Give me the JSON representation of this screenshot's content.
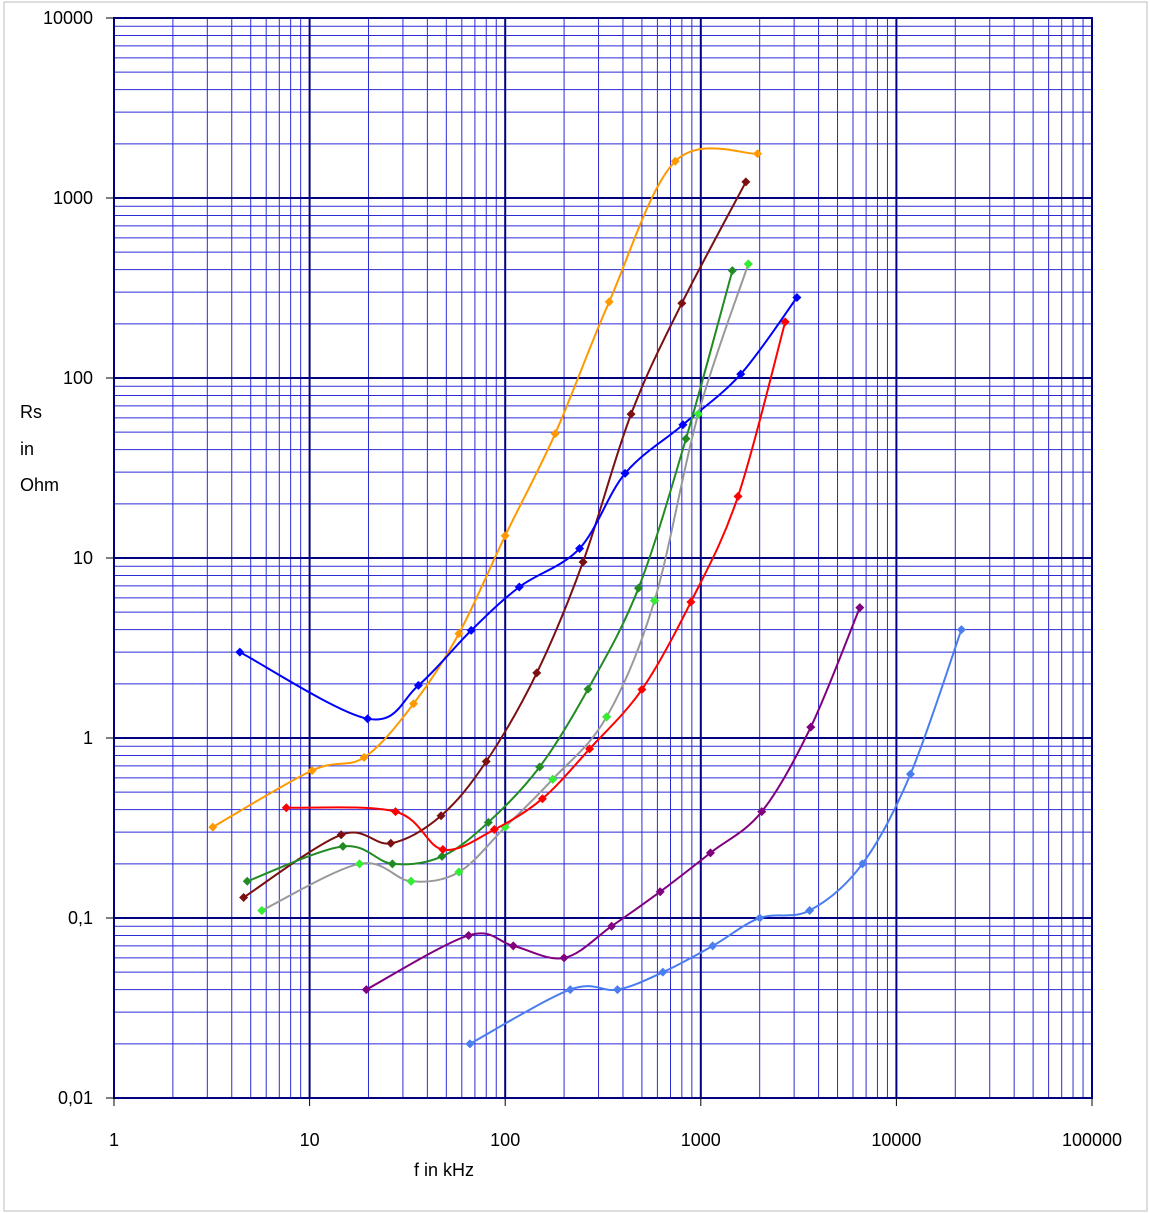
{
  "chart_data": {
    "type": "line",
    "title": "",
    "xlabel": "f in kHz",
    "ylabel_lines": [
      "Rs",
      "in",
      "Ohm"
    ],
    "x_scale": "log",
    "y_scale": "log",
    "xlim": [
      1,
      100000
    ],
    "ylim": [
      0.01,
      10000
    ],
    "x_tick_labels": [
      "1",
      "10",
      "100",
      "1000",
      "10000",
      "100000"
    ],
    "y_tick_labels": [
      "10000",
      "1000",
      "100",
      "10",
      "1",
      "0,1",
      "0,01"
    ],
    "grid": true,
    "legend": "none",
    "series": [
      {
        "color": "#ff9900",
        "x": [
          3.2,
          10.3,
          19,
          34,
          58,
          100,
          180,
          340,
          740,
          1950
        ],
        "y": [
          0.32,
          0.66,
          0.78,
          1.55,
          3.8,
          13.3,
          49,
          265,
          1600,
          1760
        ]
      },
      {
        "color": "#7b1010",
        "x": [
          4.6,
          14.5,
          26,
          47,
          80,
          145,
          250,
          440,
          800,
          1700
        ],
        "y": [
          0.13,
          0.29,
          0.26,
          0.37,
          0.74,
          2.3,
          9.5,
          63,
          260,
          1230
        ]
      },
      {
        "color": "#0000ff",
        "x": [
          4.4,
          19.8,
          36,
          67,
          118,
          240,
          410,
          810,
          1600,
          3100
        ],
        "y": [
          3.0,
          1.28,
          1.96,
          3.96,
          6.9,
          11.3,
          29.5,
          55,
          105,
          280
        ]
      },
      {
        "color": "#228b22",
        "x": [
          4.8,
          14.8,
          26.5,
          47.5,
          82,
          150,
          265,
          480,
          840,
          1450
        ],
        "y": [
          0.16,
          0.25,
          0.2,
          0.22,
          0.34,
          0.69,
          1.87,
          6.8,
          46,
          395
        ]
      },
      {
        "color": "#999999",
        "x": [
          5.7,
          18,
          33,
          58,
          100,
          175,
          330,
          580,
          970,
          1750
        ],
        "y": [
          0.11,
          0.2,
          0.16,
          0.18,
          0.32,
          0.59,
          1.31,
          5.8,
          63,
          430
        ]
      },
      {
        "color": "#33ee33",
        "markers_only": true,
        "x": [
          5.7,
          18,
          33,
          58,
          100,
          175,
          330,
          580,
          970,
          1750
        ],
        "y": [
          0.11,
          0.2,
          0.16,
          0.18,
          0.32,
          0.59,
          1.31,
          5.8,
          63,
          430
        ]
      },
      {
        "color": "#ff0000",
        "x": [
          7.6,
          27.5,
          48,
          88,
          155,
          270,
          500,
          890,
          1550,
          2700
        ],
        "y": [
          0.41,
          0.39,
          0.24,
          0.31,
          0.46,
          0.87,
          1.86,
          5.7,
          22,
          205
        ]
      },
      {
        "color": "#800080",
        "x": [
          19.5,
          65,
          110,
          200,
          350,
          620,
          1120,
          2050,
          3650,
          6500
        ],
        "y": [
          0.04,
          0.08,
          0.07,
          0.06,
          0.09,
          0.14,
          0.23,
          0.39,
          1.15,
          5.3
        ]
      },
      {
        "color": "#4a7df0",
        "x": [
          66,
          215,
          375,
          640,
          1150,
          2000,
          3600,
          6700,
          11800,
          21500
        ],
        "y": [
          0.02,
          0.04,
          0.04,
          0.05,
          0.07,
          0.1,
          0.11,
          0.2,
          0.63,
          4.0
        ]
      }
    ]
  }
}
